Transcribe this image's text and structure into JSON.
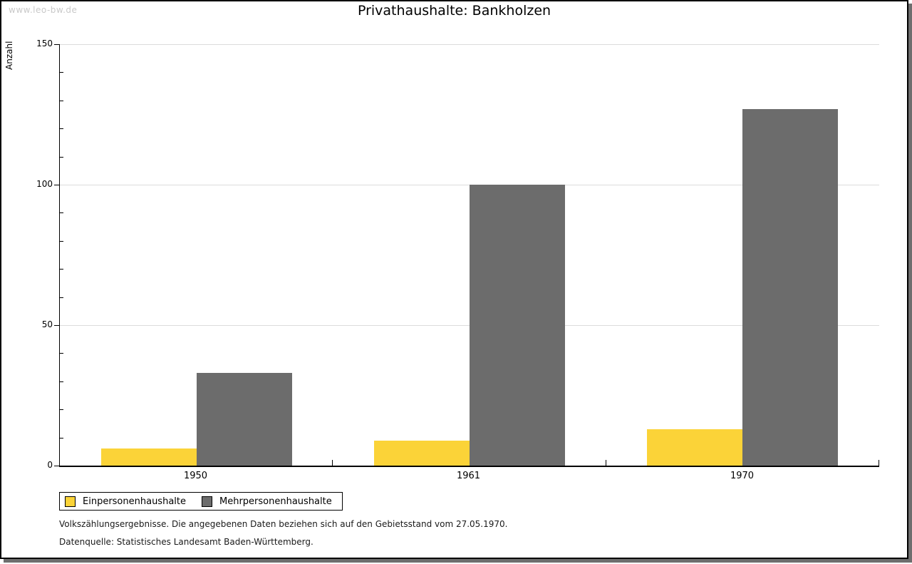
{
  "page": {
    "watermark": "www.leo-bw.de"
  },
  "chart_data": {
    "type": "bar",
    "title": "Privathaushalte: Bankholzen",
    "xlabel": "",
    "ylabel": "Anzahl",
    "ylim": [
      0,
      150
    ],
    "yticks": [
      0,
      50,
      100,
      150
    ],
    "minor_tick_step": 10,
    "grid": true,
    "legend_position": "bottom-left",
    "categories": [
      "1950",
      "1961",
      "1970"
    ],
    "series": [
      {
        "name": "Einpersonenhaushalte",
        "color": "#fbd338",
        "values": [
          6,
          9,
          13
        ]
      },
      {
        "name": "Mehrpersonenhaushalte",
        "color": "#6c6c6c",
        "values": [
          33,
          100,
          127
        ]
      }
    ]
  },
  "footnotes": [
    "Volkszählungsergebnisse. Die angegebenen Daten beziehen sich auf den Gebietsstand vom 27.05.1970.",
    "Datenquelle: Statistisches Landesamt Baden-Württemberg."
  ],
  "colors": {
    "grid": "#dcdcdc",
    "axis": "#000000",
    "watermark": "#c9c9c9",
    "shadow": "#6e6e6e"
  }
}
